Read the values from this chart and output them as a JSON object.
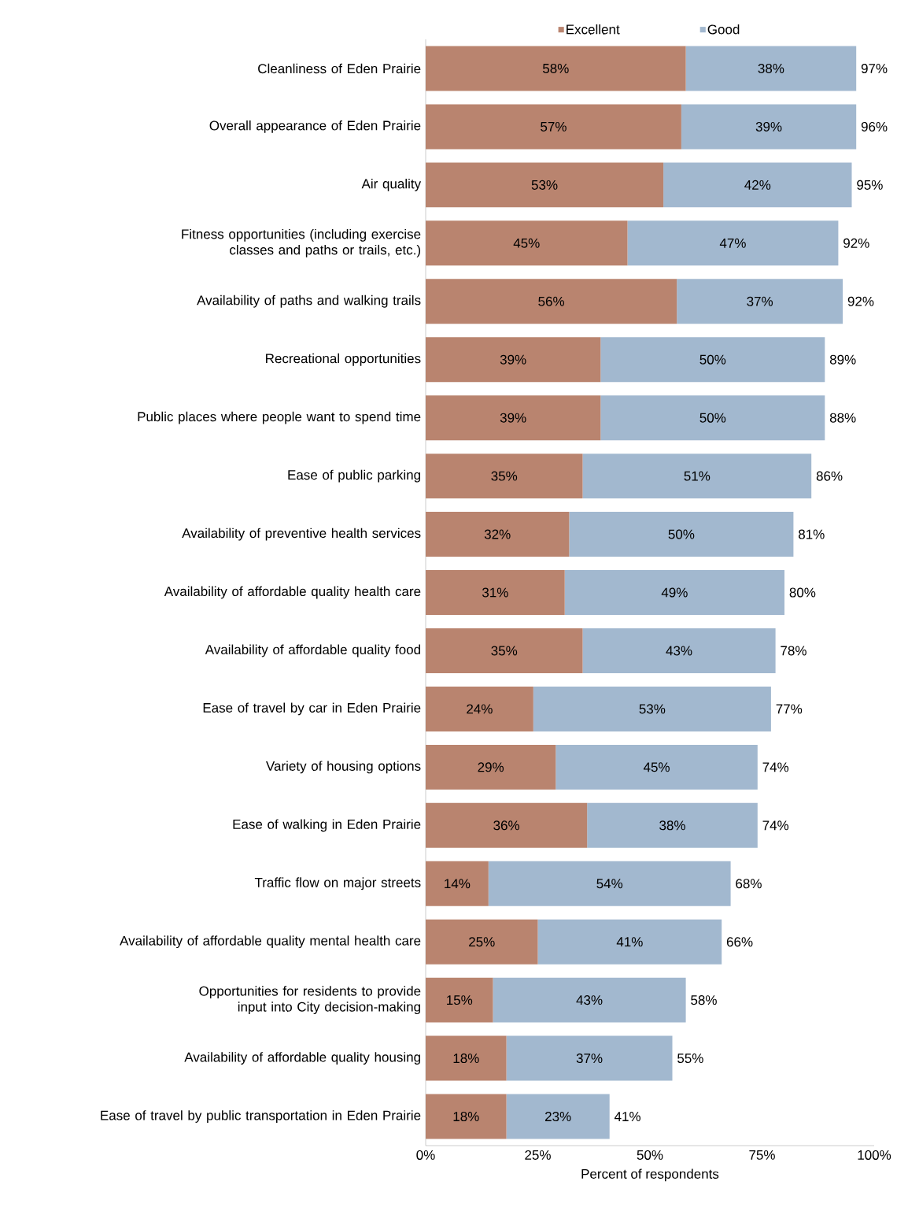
{
  "chart_data": {
    "type": "bar",
    "orientation": "horizontal",
    "stacked": true,
    "xlabel": "Percent of respondents",
    "legend": "top",
    "categories": [
      "Cleanliness of Eden Prairie",
      "Overall appearance of Eden Prairie",
      "Air quality",
      "Fitness opportunities (including exercise classes and paths or trails, etc.)",
      "Availability of paths and walking trails",
      "Recreational opportunities",
      "Public places where people want to spend time",
      "Ease of public parking",
      "Availability of preventive health services",
      "Availability of affordable quality health care",
      "Availability of affordable quality food",
      "Ease of travel by car in Eden Prairie",
      "Variety of housing options",
      "Ease of walking in Eden Prairie",
      "Traffic flow on major streets",
      "Availability of affordable quality mental health care",
      "Opportunities for residents to provide input into City decision-making",
      "Availability of affordable quality housing",
      "Ease of travel by public transportation in Eden Prairie"
    ],
    "series": [
      {
        "name": "Excellent",
        "color": "#b9846f",
        "values": [
          58,
          57,
          53,
          45,
          56,
          39,
          39,
          35,
          32,
          31,
          35,
          24,
          29,
          36,
          14,
          25,
          15,
          18,
          18
        ],
        "value_labels": [
          "58%",
          "57%",
          "53%",
          "45%",
          "56%",
          "39%",
          "39%",
          "35%",
          "32%",
          "31%",
          "35%",
          "24%",
          "29%",
          "36%",
          "14%",
          "25%",
          "15%",
          "18%",
          "18%"
        ]
      },
      {
        "name": "Good",
        "color": "#a2b8cf",
        "values": [
          38,
          39,
          42,
          47,
          37,
          50,
          50,
          51,
          50,
          49,
          43,
          53,
          45,
          38,
          54,
          41,
          43,
          37,
          23
        ],
        "value_labels": [
          "38%",
          "39%",
          "42%",
          "47%",
          "37%",
          "50%",
          "50%",
          "51%",
          "50%",
          "49%",
          "43%",
          "53%",
          "45%",
          "38%",
          "54%",
          "41%",
          "43%",
          "37%",
          "23%"
        ]
      }
    ],
    "totals": [
      "97%",
      "96%",
      "95%",
      "92%",
      "92%",
      "89%",
      "88%",
      "86%",
      "81%",
      "80%",
      "78%",
      "77%",
      "74%",
      "74%",
      "68%",
      "66%",
      "58%",
      "55%",
      "41%"
    ],
    "xlim": [
      0,
      100
    ],
    "xticks": [
      {
        "value": 0,
        "label": "0%"
      },
      {
        "value": 25,
        "label": "25%"
      },
      {
        "value": 50,
        "label": "50%"
      },
      {
        "value": 75,
        "label": "75%"
      },
      {
        "value": 100,
        "label": "100%"
      }
    ]
  }
}
